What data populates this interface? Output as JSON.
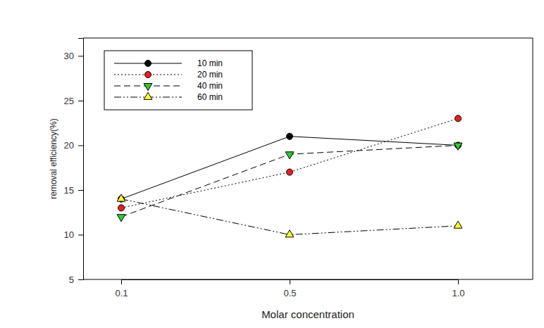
{
  "chart_data": {
    "type": "line",
    "x_label": "Molar concentration",
    "y_label": "removal efficiency(%)",
    "categories": [
      "0.1",
      "0.5",
      "1.0"
    ],
    "series": [
      {
        "name": "10 min",
        "color": "#000000",
        "marker": "circle",
        "line_style": "solid",
        "values": [
          14,
          21,
          20
        ]
      },
      {
        "name": "20 min",
        "color": "#e8201c",
        "marker": "circle",
        "line_style": "dotted",
        "values": [
          13,
          17,
          23
        ]
      },
      {
        "name": "40 min",
        "color": "#2ecc2e",
        "marker": "triangle-down",
        "line_style": "dashed",
        "values": [
          12,
          19,
          20
        ]
      },
      {
        "name": "60 min",
        "color": "#ffff33",
        "marker": "triangle-up",
        "line_style": "dashdotdot",
        "values": [
          14,
          10,
          11
        ]
      }
    ],
    "ylim": [
      5,
      32
    ],
    "yticks": [
      5,
      10,
      15,
      20,
      25,
      30
    ],
    "legend": "upper left",
    "grid": false
  }
}
